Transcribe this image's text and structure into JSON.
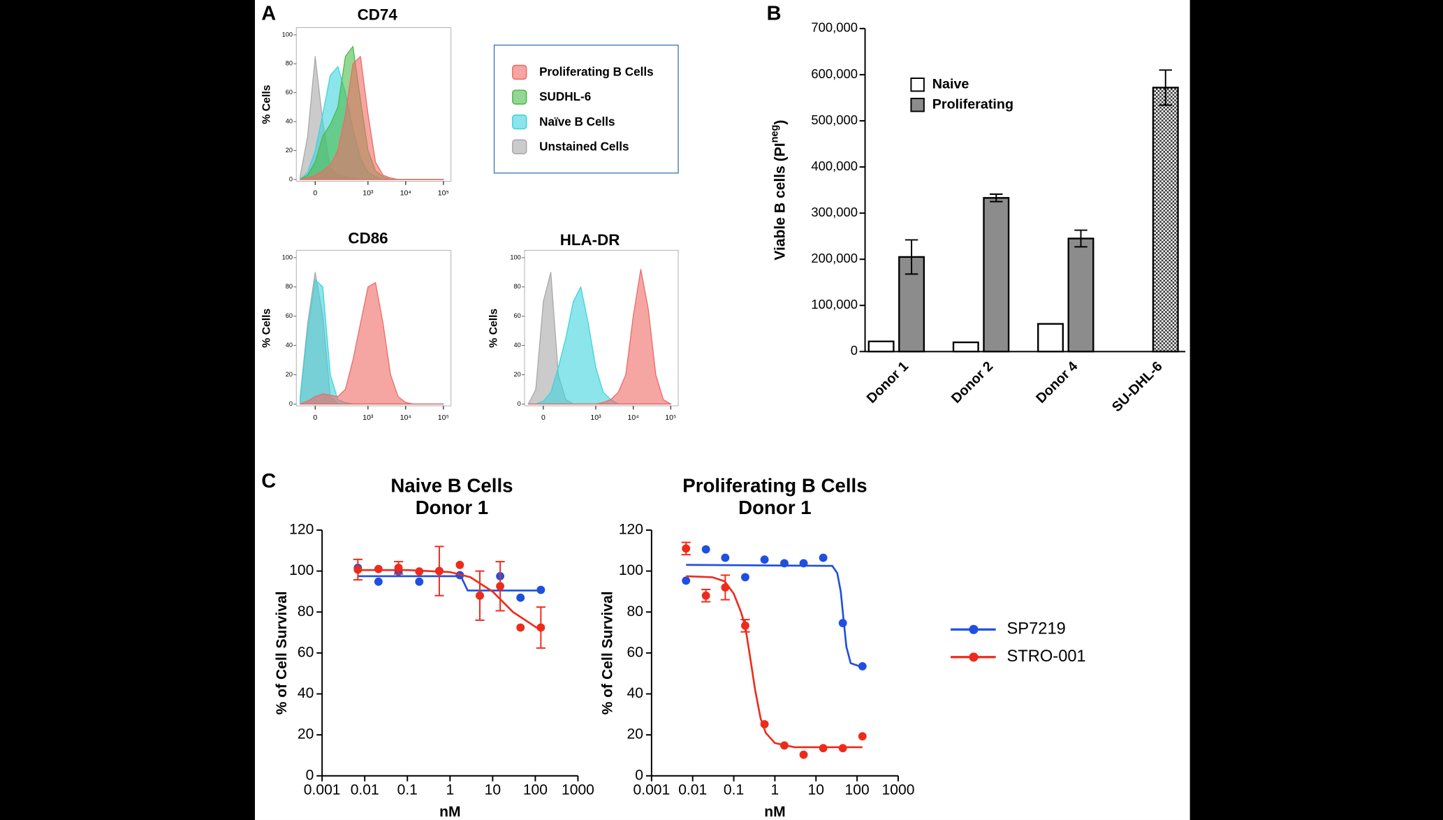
{
  "panels": [
    "A",
    "B",
    "C"
  ],
  "chart_data": [
    {
      "type": "area",
      "title": "CD74",
      "ylabel": "% Cells",
      "x": [
        1.2,
        1.4,
        1.6,
        1.8,
        2.0,
        2.2,
        2.4,
        2.6,
        2.8,
        3.0,
        3.2,
        3.4,
        3.6,
        3.8,
        4.0,
        4.2,
        4.4,
        4.6,
        4.8,
        5.0
      ],
      "xlim": [
        1.1,
        5.2
      ],
      "xticks": [
        {
          "value": 1.6,
          "label": "0"
        },
        {
          "value": 3,
          "label": "10³"
        },
        {
          "value": 4,
          "label": "10⁴"
        },
        {
          "value": 5,
          "label": "10⁵"
        }
      ],
      "ylim": [
        0,
        105
      ],
      "yticks": [
        0,
        20,
        40,
        60,
        80,
        100
      ],
      "series": [
        {
          "name": "Proliferating B Cells",
          "color": "#ee6b66",
          "values": [
            0,
            1,
            3,
            6,
            10,
            20,
            45,
            80,
            85,
            45,
            12,
            3,
            1,
            0,
            0,
            0,
            0,
            0,
            0,
            0
          ]
        },
        {
          "name": "SUDHL-6",
          "color": "#4cbb4c",
          "values": [
            0,
            3,
            12,
            30,
            38,
            50,
            85,
            92,
            55,
            20,
            6,
            2,
            0,
            0,
            0,
            0,
            0,
            0,
            0,
            0
          ]
        },
        {
          "name": "Naïve B Cells",
          "color": "#3fd4dc",
          "values": [
            0,
            5,
            20,
            45,
            72,
            78,
            60,
            35,
            15,
            5,
            2,
            0,
            0,
            0,
            0,
            0,
            0,
            0,
            0,
            0
          ]
        },
        {
          "name": "Unstained Cells",
          "color": "#a9a9a9",
          "values": [
            2,
            30,
            85,
            40,
            8,
            3,
            2,
            1,
            0,
            0,
            0,
            0,
            0,
            0,
            0,
            0,
            0,
            0,
            0,
            0
          ]
        }
      ]
    },
    {
      "type": "area",
      "title": "CD86",
      "ylabel": "% Cells",
      "x": [
        1.2,
        1.4,
        1.6,
        1.8,
        2.0,
        2.2,
        2.4,
        2.6,
        2.8,
        3.0,
        3.2,
        3.4,
        3.6,
        3.8,
        4.0,
        4.2,
        4.4,
        4.6,
        4.8,
        5.0
      ],
      "xlim": [
        1.1,
        5.2
      ],
      "xticks": [
        {
          "value": 1.6,
          "label": "0"
        },
        {
          "value": 3,
          "label": "10³"
        },
        {
          "value": 4,
          "label": "10⁴"
        },
        {
          "value": 5,
          "label": "10⁵"
        }
      ],
      "ylim": [
        0,
        105
      ],
      "yticks": [
        0,
        20,
        40,
        60,
        80,
        100
      ],
      "series": [
        {
          "color": "#ee6b66",
          "values": [
            0,
            2,
            5,
            7,
            6,
            5,
            10,
            30,
            55,
            80,
            83,
            55,
            20,
            5,
            1,
            0,
            0,
            0,
            0,
            0
          ]
        },
        {
          "color": "#3fd4dc",
          "values": [
            3,
            50,
            85,
            80,
            20,
            3,
            1,
            0,
            0,
            0,
            0,
            0,
            0,
            0,
            0,
            0,
            0,
            0,
            0,
            0
          ]
        },
        {
          "color": "#a9a9a9",
          "values": [
            5,
            55,
            90,
            60,
            5,
            0,
            0,
            0,
            0,
            0,
            0,
            0,
            0,
            0,
            0,
            0,
            0,
            0,
            0,
            0
          ]
        }
      ]
    },
    {
      "type": "area",
      "title": "HLA-DR",
      "ylabel": "% Cells",
      "x": [
        1.2,
        1.4,
        1.6,
        1.8,
        2.0,
        2.2,
        2.4,
        2.6,
        2.8,
        3.0,
        3.2,
        3.4,
        3.6,
        3.8,
        4.0,
        4.2,
        4.4,
        4.6,
        4.8,
        5.0
      ],
      "xlim": [
        1.1,
        5.2
      ],
      "xticks": [
        {
          "value": 1.6,
          "label": "0"
        },
        {
          "value": 3,
          "label": "10³"
        },
        {
          "value": 4,
          "label": "10⁴"
        },
        {
          "value": 5,
          "label": "10⁵"
        }
      ],
      "ylim": [
        0,
        105
      ],
      "yticks": [
        0,
        20,
        40,
        60,
        80,
        100
      ],
      "series": [
        {
          "color": "#ee6b66",
          "values": [
            0,
            0,
            0,
            0,
            0,
            0,
            0,
            0,
            0,
            0,
            1,
            3,
            8,
            20,
            60,
            92,
            65,
            20,
            3,
            0
          ]
        },
        {
          "color": "#3fd4dc",
          "values": [
            0,
            0,
            2,
            8,
            25,
            45,
            70,
            80,
            55,
            25,
            8,
            3,
            0,
            0,
            0,
            0,
            0,
            0,
            0,
            0
          ]
        },
        {
          "color": "#a9a9a9",
          "values": [
            0,
            10,
            70,
            90,
            20,
            3,
            0,
            0,
            0,
            0,
            0,
            0,
            0,
            0,
            0,
            0,
            0,
            0,
            0,
            0
          ]
        }
      ]
    },
    {
      "type": "bar",
      "ylabel": [
        "Viable B cells (PI",
        "neg",
        ")"
      ],
      "categories": [
        "Donor 1",
        "Donor 2",
        "Donor 4",
        "SU-DHL-6"
      ],
      "ylim": [
        0,
        700000
      ],
      "yticks": [
        0,
        {
          "value": 100000,
          "label": "100,000"
        },
        {
          "value": 200000,
          "label": "200,000"
        },
        {
          "value": 300000,
          "label": "300,000"
        },
        {
          "value": 400000,
          "label": "400,000"
        },
        {
          "value": 500000,
          "label": "500,000"
        },
        {
          "value": 600000,
          "label": "600,000"
        },
        {
          "value": 700000,
          "label": "700,000"
        }
      ],
      "series": [
        {
          "name": "Naive",
          "color": "#ffffff",
          "values": [
            22000,
            20000,
            60000,
            null
          ]
        },
        {
          "name": "Proliferating",
          "color": "#8c8c8c",
          "values": [
            205000,
            333000,
            245000,
            572000
          ],
          "errors": [
            37000,
            8000,
            18000,
            38000
          ],
          "hatch": [
            false,
            false,
            false,
            true
          ]
        }
      ]
    },
    {
      "type": "line",
      "title": [
        "Naive B Cells",
        "Donor 1"
      ],
      "xlabel": "nM",
      "ylabel": "% of Cell Survival",
      "xscale": "log",
      "xlim": [
        0.001,
        1000
      ],
      "xticks": [
        0.001,
        0.01,
        0.1,
        1,
        10,
        100,
        1000
      ],
      "ylim": [
        0,
        120
      ],
      "yticks": [
        0,
        20,
        40,
        60,
        80,
        100,
        120
      ],
      "x": [
        0.0069,
        0.021,
        0.062,
        0.19,
        0.56,
        1.7,
        5,
        15,
        45,
        135
      ],
      "series": [
        {
          "color": "#1f4fe0",
          "values": [
            101.6,
            94.8,
            99.8,
            94.8,
            100,
            98,
            88,
            97.5,
            87,
            90.8
          ],
          "fit_x": [
            0.0069,
            1.8,
            2.6,
            135
          ],
          "fit_values": [
            97.5,
            97.5,
            90.5,
            90.5
          ]
        },
        {
          "color": "#ee2b1b",
          "values": [
            100.7,
            101,
            101.6,
            99.8,
            100,
            103,
            88,
            92.6,
            72.4,
            72.4
          ],
          "errors": [
            5,
            null,
            3,
            null,
            12,
            null,
            12,
            12,
            null,
            10
          ],
          "fit_x": [
            0.0069,
            0.1,
            1,
            3,
            10,
            30,
            135
          ],
          "fit_values": [
            100.5,
            100.5,
            99.5,
            97,
            90,
            80,
            71
          ]
        }
      ]
    },
    {
      "type": "line",
      "title": [
        "Proliferating B Cells",
        "Donor 1"
      ],
      "xlabel": "nM",
      "ylabel": "% of Cell Survival",
      "xscale": "log",
      "xlim": [
        0.001,
        1000
      ],
      "xticks": [
        0.001,
        0.01,
        0.1,
        1,
        10,
        100,
        1000
      ],
      "ylim": [
        0,
        120
      ],
      "yticks": [
        0,
        20,
        40,
        60,
        80,
        100,
        120
      ],
      "x": [
        0.0069,
        0.021,
        0.062,
        0.19,
        0.56,
        1.7,
        5,
        15,
        45,
        135
      ],
      "series": [
        {
          "name": "SP7219",
          "color": "#1f4fe0",
          "values": [
            95.3,
            110.6,
            106.5,
            97,
            105.6,
            103.8,
            103.8,
            106.5,
            74.6,
            53.5
          ],
          "fit_x": [
            0.0069,
            25,
            33,
            40,
            47,
            55,
            70,
            135
          ],
          "fit_values": [
            103,
            102.5,
            99,
            90,
            76,
            63,
            55,
            53
          ]
        },
        {
          "name": "STRO-001",
          "color": "#ee2b1b",
          "values": [
            111,
            88,
            92,
            73.3,
            25.2,
            14.8,
            10.3,
            13.5,
            13.5,
            19.3
          ],
          "errors": [
            3,
            3,
            6,
            3,
            null,
            null,
            null,
            null,
            null,
            null
          ],
          "fit_x": [
            0.0069,
            0.03,
            0.06,
            0.1,
            0.15,
            0.19,
            0.25,
            0.33,
            0.45,
            0.6,
            1,
            3,
            135
          ],
          "fit_values": [
            97.5,
            97,
            95,
            89,
            80,
            73,
            58,
            42,
            28,
            21,
            16,
            14,
            14
          ]
        }
      ]
    }
  ]
}
